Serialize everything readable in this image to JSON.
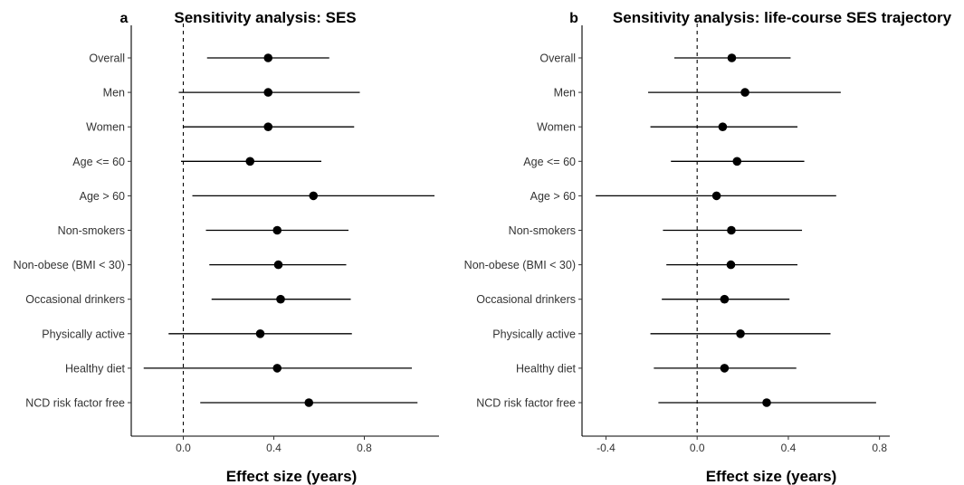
{
  "chart_data": [
    {
      "type": "scatter",
      "panel": "a",
      "title": "Sensitivity analysis: SES",
      "xlabel": "Effect size (years)",
      "ylabel": "",
      "xlim": [
        -0.23,
        1.13
      ],
      "xticks": [
        0.0,
        0.4,
        0.8
      ],
      "xtick_labels": [
        "0.0",
        "0.4",
        "0.8"
      ],
      "reference_line": 0,
      "categories": [
        "Overall",
        "Men",
        "Women",
        "Age <= 60",
        "Age > 60",
        "Non-smokers",
        "Non-obese (BMI < 30)",
        "Occasional drinkers",
        "Physically active",
        "Healthy diet",
        "NCD risk factor free"
      ],
      "estimates": [
        0.375,
        0.375,
        0.375,
        0.295,
        0.575,
        0.415,
        0.42,
        0.43,
        0.34,
        0.415,
        0.555
      ],
      "lower": [
        0.105,
        -0.02,
        0.0,
        -0.01,
        0.04,
        0.1,
        0.115,
        0.125,
        -0.065,
        -0.175,
        0.075
      ],
      "upper": [
        0.645,
        0.78,
        0.755,
        0.61,
        1.11,
        0.73,
        0.72,
        0.74,
        0.745,
        1.01,
        1.035
      ],
      "grid": false
    },
    {
      "type": "scatter",
      "panel": "b",
      "title": "Sensitivity analysis: life-course SES trajectory",
      "xlabel": "Effect size (years)",
      "ylabel": "",
      "xlim": [
        -0.505,
        0.845
      ],
      "xticks": [
        -0.4,
        0.0,
        0.4,
        0.8
      ],
      "xtick_labels": [
        "-0.4",
        "0.0",
        "0.4",
        "0.8"
      ],
      "reference_line": 0,
      "categories": [
        "Overall",
        "Men",
        "Women",
        "Age <= 60",
        "Age > 60",
        "Non-smokers",
        "Non-obese (BMI < 30)",
        "Occasional drinkers",
        "Physically active",
        "Healthy diet",
        "NCD risk factor free"
      ],
      "estimates": [
        0.152,
        0.21,
        0.112,
        0.175,
        0.085,
        0.15,
        0.148,
        0.12,
        0.19,
        0.12,
        0.305
      ],
      "lower": [
        -0.1,
        -0.215,
        -0.205,
        -0.115,
        -0.445,
        -0.15,
        -0.135,
        -0.155,
        -0.205,
        -0.19,
        -0.17
      ],
      "upper": [
        0.41,
        0.63,
        0.44,
        0.47,
        0.61,
        0.46,
        0.44,
        0.405,
        0.585,
        0.435,
        0.785
      ],
      "grid": false
    }
  ]
}
